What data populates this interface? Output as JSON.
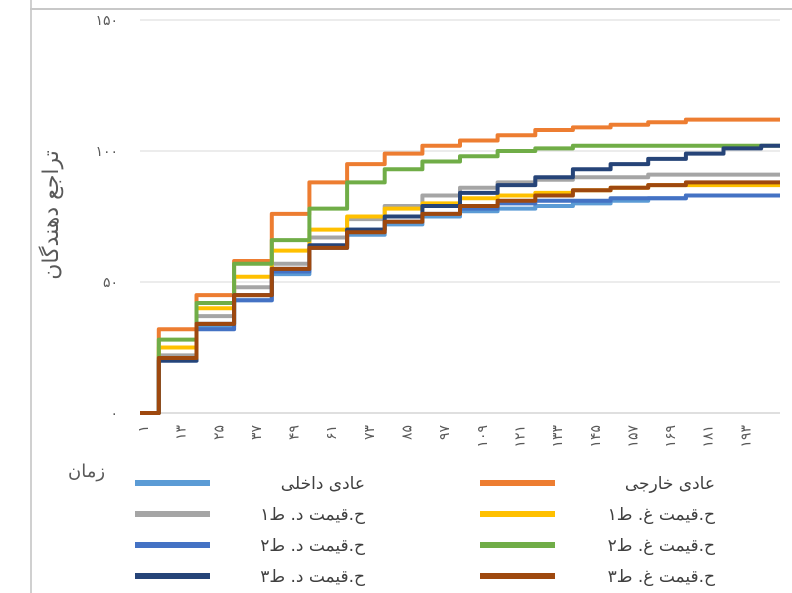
{
  "chart_data": {
    "type": "line",
    "ylabel": "تراجع دهندگان",
    "xlabel": "زمان",
    "ylim": [
      0,
      150
    ],
    "yticks": [
      "۰",
      "۵۰",
      "۱۰۰",
      "۱۵۰"
    ],
    "xticks": [
      "۱",
      "۱۳",
      "۲۵",
      "۳۷",
      "۴۹",
      "۶۱",
      "۷۳",
      "۸۵",
      "۹۷",
      "۱۰۹",
      "۱۲۱",
      "۱۳۳",
      "۱۴۵",
      "۱۵۷",
      "۱۶۹",
      "۱۸۱",
      "۱۹۳"
    ],
    "xlim": [
      1,
      205
    ],
    "grid": true,
    "legend": "bottom",
    "x": [
      1,
      13,
      25,
      37,
      49,
      61,
      73,
      85,
      97,
      109,
      121,
      133,
      145,
      157,
      169,
      181,
      193,
      205
    ],
    "series": [
      {
        "name": "عادی داخلی",
        "color": "#5b9bd5",
        "values": [
          0,
          20,
          33,
          43,
          53,
          63,
          68,
          72,
          75,
          77,
          78,
          79,
          80,
          81,
          82,
          83,
          83,
          83
        ]
      },
      {
        "name": "عادی خارجی",
        "color": "#ed7d31",
        "values": [
          0,
          32,
          45,
          58,
          76,
          88,
          95,
          99,
          102,
          104,
          106,
          108,
          109,
          110,
          111,
          112,
          112,
          112
        ]
      },
      {
        "name": "ح.قیمت د. ط۱",
        "color": "#a5a5a5",
        "values": [
          0,
          22,
          37,
          48,
          57,
          67,
          74,
          79,
          83,
          86,
          88,
          89,
          90,
          90,
          91,
          91,
          91,
          91
        ]
      },
      {
        "name": "ح.قیمت غ. ط۱",
        "color": "#ffc000",
        "values": [
          0,
          25,
          40,
          52,
          62,
          70,
          75,
          78,
          80,
          82,
          83,
          84,
          85,
          86,
          87,
          87,
          87,
          87
        ]
      },
      {
        "name": "ح.قیمت د. ط۲",
        "color": "#4472c4",
        "values": [
          0,
          20,
          32,
          43,
          54,
          63,
          70,
          73,
          76,
          78,
          80,
          81,
          81,
          82,
          82,
          83,
          83,
          83
        ]
      },
      {
        "name": "ح.قیمت غ. ط۲",
        "color": "#70ad47",
        "values": [
          0,
          28,
          42,
          57,
          66,
          78,
          88,
          93,
          96,
          98,
          100,
          101,
          102,
          102,
          102,
          102,
          102,
          102
        ]
      },
      {
        "name": "ح.قیمت د. ط۳",
        "color": "#264478",
        "values": [
          0,
          20,
          34,
          45,
          55,
          64,
          70,
          75,
          79,
          84,
          87,
          90,
          93,
          95,
          97,
          99,
          101,
          102
        ]
      },
      {
        "name": "ح.قیمت غ. ط۳",
        "color": "#9e480e",
        "values": [
          0,
          21,
          34,
          45,
          55,
          63,
          69,
          73,
          76,
          79,
          81,
          83,
          85,
          86,
          87,
          88,
          88,
          88
        ]
      }
    ]
  }
}
